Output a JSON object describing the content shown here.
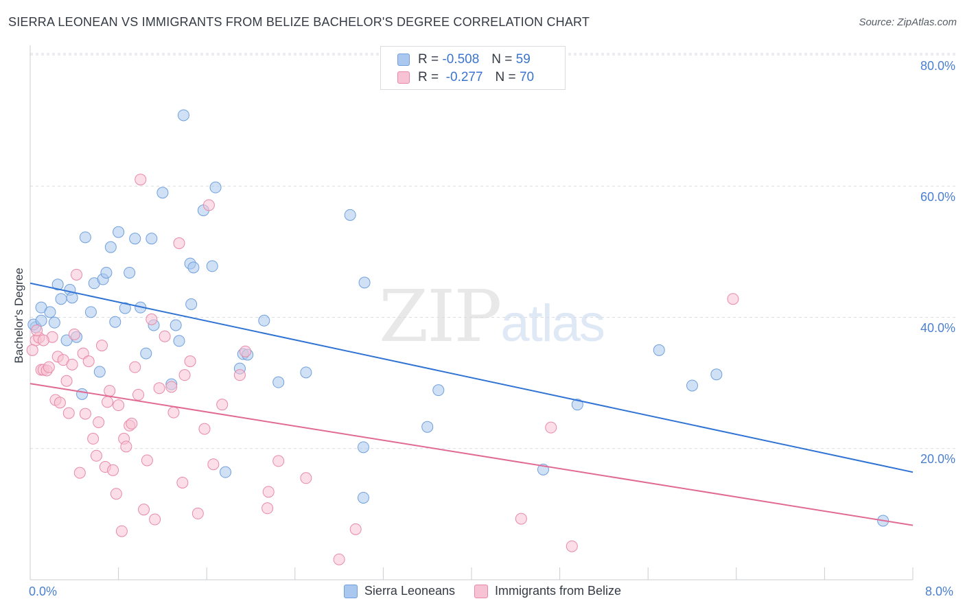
{
  "chart_data": {
    "type": "scatter",
    "title": "SIERRA LEONEAN VS IMMIGRANTS FROM BELIZE BACHELOR'S DEGREE CORRELATION CHART",
    "source": "Source: ZipAtlas.com",
    "xlabel": "",
    "ylabel": "Bachelor's Degree",
    "xlim": [
      0,
      8
    ],
    "ylim": [
      0,
      80
    ],
    "x_tick_labels": [
      "0.0%",
      "8.0%"
    ],
    "y_ticks": [
      20,
      40,
      60,
      80
    ],
    "y_tick_labels": [
      "20.0%",
      "40.0%",
      "60.0%",
      "80.0%"
    ],
    "watermark": {
      "bold": "ZIP",
      "light": "atlas"
    },
    "legend": {
      "r_label": "R =",
      "n_label": "N =",
      "entries": [
        {
          "name": "Sierra Leoneans",
          "r": "-0.508",
          "n": "59"
        },
        {
          "name": "Immigrants from Belize",
          "r": "-0.277",
          "n": "70"
        }
      ]
    },
    "series": [
      {
        "name": "Sierra Leoneans",
        "fill": "#aac8ef",
        "stroke": "#6f9fdc",
        "trend": {
          "x0": 0,
          "y0": 45.2,
          "x1": 8,
          "y1": 16.4,
          "color": "#2f73d4"
        },
        "points": [
          [
            0.05,
            38.5
          ],
          [
            0.1,
            41.5
          ],
          [
            0.18,
            40.8
          ],
          [
            0.22,
            39.2
          ],
          [
            0.25,
            45.0
          ],
          [
            0.28,
            42.8
          ],
          [
            0.33,
            36.5
          ],
          [
            0.36,
            44.2
          ],
          [
            0.38,
            43.0
          ],
          [
            0.42,
            37.0
          ],
          [
            0.47,
            28.3
          ],
          [
            0.5,
            52.2
          ],
          [
            0.55,
            40.8
          ],
          [
            0.58,
            45.2
          ],
          [
            0.63,
            31.7
          ],
          [
            0.66,
            45.8
          ],
          [
            0.69,
            46.8
          ],
          [
            0.73,
            50.7
          ],
          [
            0.77,
            39.3
          ],
          [
            0.8,
            53.0
          ],
          [
            0.86,
            41.4
          ],
          [
            0.9,
            46.8
          ],
          [
            0.95,
            52.0
          ],
          [
            1.0,
            41.5
          ],
          [
            1.05,
            34.5
          ],
          [
            1.1,
            52.0
          ],
          [
            1.12,
            38.8
          ],
          [
            1.2,
            59.0
          ],
          [
            1.28,
            29.8
          ],
          [
            1.32,
            38.8
          ],
          [
            1.35,
            36.4
          ],
          [
            1.39,
            70.8
          ],
          [
            1.45,
            48.2
          ],
          [
            1.46,
            42.0
          ],
          [
            1.48,
            47.6
          ],
          [
            1.57,
            56.3
          ],
          [
            1.65,
            47.8
          ],
          [
            1.68,
            59.8
          ],
          [
            1.77,
            16.4
          ],
          [
            1.9,
            32.2
          ],
          [
            1.93,
            34.4
          ],
          [
            1.97,
            34.3
          ],
          [
            2.12,
            39.5
          ],
          [
            2.25,
            30.1
          ],
          [
            2.5,
            31.6
          ],
          [
            2.9,
            55.6
          ],
          [
            3.03,
            45.3
          ],
          [
            3.02,
            20.2
          ],
          [
            3.02,
            12.5
          ],
          [
            3.6,
            23.3
          ],
          [
            3.7,
            28.9
          ],
          [
            4.65,
            16.8
          ],
          [
            4.96,
            26.7
          ],
          [
            5.7,
            35.0
          ],
          [
            6.0,
            29.6
          ],
          [
            6.22,
            31.3
          ],
          [
            7.73,
            9.0
          ],
          [
            0.03,
            38.9
          ],
          [
            0.1,
            39.5
          ]
        ]
      },
      {
        "name": "Immigrants from Belize",
        "fill": "#f7c2d3",
        "stroke": "#e889a8",
        "trend": {
          "x0": 0,
          "y0": 29.9,
          "x1": 8,
          "y1": 8.3,
          "color": "#e06a94"
        },
        "points": [
          [
            0.05,
            36.5
          ],
          [
            0.08,
            36.9
          ],
          [
            0.1,
            32.0
          ],
          [
            0.12,
            32.0
          ],
          [
            0.15,
            31.9
          ],
          [
            0.17,
            32.4
          ],
          [
            0.2,
            37.0
          ],
          [
            0.23,
            27.4
          ],
          [
            0.25,
            34.0
          ],
          [
            0.27,
            27.0
          ],
          [
            0.3,
            33.5
          ],
          [
            0.33,
            30.3
          ],
          [
            0.35,
            25.4
          ],
          [
            0.38,
            32.8
          ],
          [
            0.4,
            37.4
          ],
          [
            0.42,
            46.5
          ],
          [
            0.45,
            16.3
          ],
          [
            0.48,
            34.5
          ],
          [
            0.5,
            25.3
          ],
          [
            0.53,
            33.3
          ],
          [
            0.57,
            21.5
          ],
          [
            0.6,
            18.9
          ],
          [
            0.62,
            24.0
          ],
          [
            0.65,
            35.7
          ],
          [
            0.68,
            17.2
          ],
          [
            0.7,
            27.1
          ],
          [
            0.72,
            28.8
          ],
          [
            0.75,
            16.7
          ],
          [
            0.78,
            13.1
          ],
          [
            0.8,
            26.6
          ],
          [
            0.83,
            7.4
          ],
          [
            0.85,
            21.5
          ],
          [
            0.87,
            20.3
          ],
          [
            0.9,
            23.5
          ],
          [
            0.92,
            23.8
          ],
          [
            0.95,
            32.4
          ],
          [
            0.98,
            28.2
          ],
          [
            1.0,
            61.0
          ],
          [
            1.03,
            10.7
          ],
          [
            1.06,
            18.2
          ],
          [
            1.1,
            39.7
          ],
          [
            1.13,
            9.2
          ],
          [
            1.17,
            29.2
          ],
          [
            1.22,
            37.1
          ],
          [
            1.28,
            29.4
          ],
          [
            1.3,
            25.5
          ],
          [
            1.35,
            51.3
          ],
          [
            1.38,
            14.8
          ],
          [
            1.4,
            31.2
          ],
          [
            1.45,
            33.3
          ],
          [
            1.52,
            10.1
          ],
          [
            1.58,
            23.0
          ],
          [
            1.62,
            57.1
          ],
          [
            1.66,
            17.6
          ],
          [
            1.74,
            26.7
          ],
          [
            1.9,
            31.2
          ],
          [
            1.95,
            34.8
          ],
          [
            2.15,
            10.9
          ],
          [
            2.16,
            13.4
          ],
          [
            2.25,
            18.1
          ],
          [
            2.5,
            15.5
          ],
          [
            2.8,
            3.1
          ],
          [
            2.95,
            7.7
          ],
          [
            4.45,
            9.3
          ],
          [
            4.72,
            23.2
          ],
          [
            4.91,
            5.1
          ],
          [
            6.37,
            42.8
          ],
          [
            0.02,
            35.0
          ],
          [
            0.06,
            38.0
          ],
          [
            0.12,
            36.5
          ]
        ]
      }
    ]
  }
}
